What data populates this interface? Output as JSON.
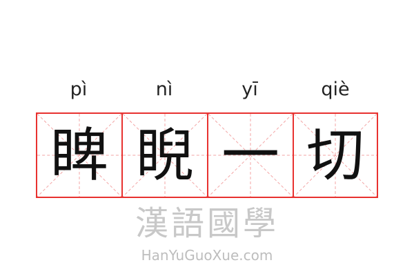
{
  "idiom": {
    "characters": [
      "睥",
      "睨",
      "一",
      "切"
    ],
    "pinyin": [
      "pì",
      "nì",
      "yī",
      "qiè"
    ]
  },
  "watermark": {
    "text": "漢語國學",
    "url": "HanYuGuoXue.com"
  },
  "colors": {
    "grid_border": "#e8312f",
    "guide_lines": "#f3a6a6"
  }
}
